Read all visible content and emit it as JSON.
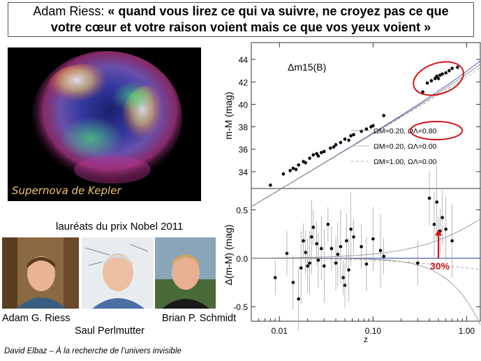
{
  "title": {
    "lead": "Adam Riess: ",
    "quote_line1": "« quand vous lirez ce qui va suivre, ne croyez pas ce que",
    "quote_line2": "votre cœur et votre raison voient mais ce que vos yeux voient »"
  },
  "kepler_caption": "Supernova de Kepler",
  "laureates_heading": "lauréats du prix Nobel 2011",
  "laureates": [
    "Adam G. Riess",
    "Saul Perlmutter",
    "Brian P. Schmidt"
  ],
  "footer": "David Elbaz – À la recherche de l’univers invisible",
  "colors": {
    "highlight": "#d01515",
    "model_line": "#4a5bb0",
    "kepler_caption": "#f0c36a"
  },
  "chart_data": [
    {
      "type": "scatter",
      "title": "Δm15(B)",
      "ylabel": "m-M (mag)",
      "ylim": [
        32.5,
        45.5
      ],
      "xscale": "log",
      "xlim": [
        0.005,
        1.4
      ],
      "yticks": [
        34,
        36,
        38,
        40,
        42,
        44
      ],
      "legend": [
        "ΩM=0.20, ΩΛ=0.80",
        "ΩM=0.20, ΩΛ=0.00",
        "ΩM=1.00, ΩΛ=0.00"
      ],
      "points": [
        [
          0.008,
          32.8
        ],
        [
          0.011,
          33.8
        ],
        [
          0.013,
          34.1
        ],
        [
          0.014,
          34.3
        ],
        [
          0.015,
          34.2
        ],
        [
          0.016,
          34.6
        ],
        [
          0.018,
          34.9
        ],
        [
          0.019,
          34.8
        ],
        [
          0.021,
          35.2
        ],
        [
          0.023,
          35.5
        ],
        [
          0.025,
          35.6
        ],
        [
          0.026,
          35.4
        ],
        [
          0.028,
          35.7
        ],
        [
          0.03,
          35.8
        ],
        [
          0.035,
          36.1
        ],
        [
          0.038,
          36.2
        ],
        [
          0.04,
          36.4
        ],
        [
          0.045,
          36.6
        ],
        [
          0.05,
          36.9
        ],
        [
          0.055,
          36.8
        ],
        [
          0.058,
          37.2
        ],
        [
          0.062,
          37.3
        ],
        [
          0.075,
          37.6
        ],
        [
          0.085,
          37.8
        ],
        [
          0.095,
          38.0
        ],
        [
          0.1,
          38.1
        ],
        [
          0.13,
          39.0
        ],
        [
          0.34,
          41.1
        ],
        [
          0.38,
          41.9
        ],
        [
          0.42,
          42.1
        ],
        [
          0.46,
          42.3
        ],
        [
          0.48,
          42.5
        ],
        [
          0.5,
          42.3
        ],
        [
          0.52,
          42.6
        ],
        [
          0.55,
          42.7
        ],
        [
          0.6,
          42.8
        ],
        [
          0.65,
          43.0
        ],
        [
          0.7,
          43.2
        ],
        [
          0.8,
          43.3
        ]
      ]
    },
    {
      "type": "scatter",
      "xlabel": "z",
      "ylabel": "Δ(m-M) (mag)",
      "xscale": "log",
      "xlim": [
        0.005,
        1.4
      ],
      "ylim": [
        -0.65,
        0.72
      ],
      "xticks": [
        "0.01",
        "0.10",
        "1.00"
      ],
      "yticks": [
        -0.5,
        0.0,
        0.5
      ],
      "annotation": "30%",
      "points": [
        [
          0.009,
          -0.2
        ],
        [
          0.012,
          0.05
        ],
        [
          0.014,
          -0.25
        ],
        [
          0.016,
          -0.42
        ],
        [
          0.017,
          -0.1
        ],
        [
          0.018,
          0.18
        ],
        [
          0.019,
          0.06
        ],
        [
          0.02,
          -0.08
        ],
        [
          0.021,
          -0.05
        ],
        [
          0.022,
          0.22
        ],
        [
          0.023,
          0.32
        ],
        [
          0.025,
          0.15
        ],
        [
          0.026,
          -0.02
        ],
        [
          0.028,
          0.1
        ],
        [
          0.03,
          -0.08
        ],
        [
          0.033,
          0.35
        ],
        [
          0.036,
          0.1
        ],
        [
          0.04,
          -0.05
        ],
        [
          0.042,
          0.04
        ],
        [
          0.045,
          0.12
        ],
        [
          0.048,
          -0.2
        ],
        [
          0.05,
          -0.28
        ],
        [
          0.052,
          0.18
        ],
        [
          0.055,
          -0.12
        ],
        [
          0.058,
          0.3
        ],
        [
          0.062,
          0.22
        ],
        [
          0.075,
          0.12
        ],
        [
          0.085,
          -0.06
        ],
        [
          0.1,
          0.2
        ],
        [
          0.12,
          0.08
        ],
        [
          0.13,
          0.02
        ],
        [
          0.3,
          -0.05
        ],
        [
          0.4,
          0.62
        ],
        [
          0.45,
          0.35
        ],
        [
          0.48,
          0.58
        ],
        [
          0.5,
          0.25
        ],
        [
          0.52,
          0.28
        ],
        [
          0.55,
          0.42
        ],
        [
          0.6,
          0.3
        ],
        [
          0.7,
          0.18
        ]
      ]
    }
  ]
}
